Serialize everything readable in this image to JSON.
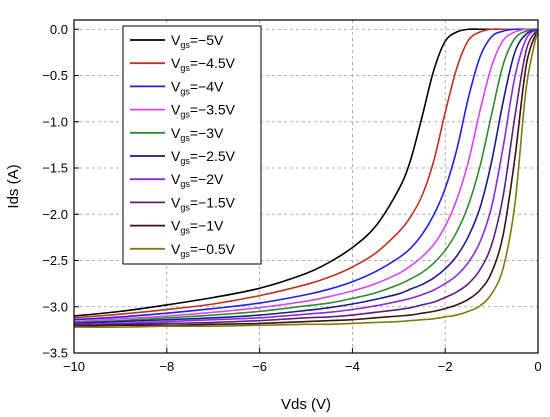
{
  "chart_data": {
    "type": "line",
    "xlabel": "Vds (V)",
    "ylabel": "Ids (A)",
    "xlim": [
      -10,
      0
    ],
    "ylim": [
      -3.5,
      0.1
    ],
    "xticks": [
      -10,
      -8,
      -6,
      -4,
      -2,
      0
    ],
    "xtick_labels": [
      "−10",
      "−8",
      "−6",
      "−4",
      "−2",
      "0"
    ],
    "yticks": [
      0.0,
      -0.5,
      -1.0,
      -1.5,
      -2.0,
      -2.5,
      -3.0,
      -3.5
    ],
    "ytick_labels": [
      "0.0",
      "−0.5",
      "−1.0",
      "−1.5",
      "−2.0",
      "−2.5",
      "−3.0",
      "−3.5"
    ],
    "grid": true,
    "legend_position": "top-left",
    "x": [
      -10,
      -9,
      -8,
      -7,
      -6,
      -5,
      -4.5,
      -4,
      -3.5,
      -3,
      -2.75,
      -2.5,
      -2.25,
      -2,
      -1.75,
      -1.5,
      -1.25,
      -1,
      -0.75,
      -0.5,
      -0.25,
      0
    ],
    "series": [
      {
        "name_main": "V",
        "name_sub": "gs",
        "name_rest": "=−5V",
        "color": "#000000",
        "values": [
          -3.1,
          -3.05,
          -2.98,
          -2.9,
          -2.8,
          -2.64,
          -2.52,
          -2.36,
          -2.13,
          -1.73,
          -1.42,
          -0.95,
          -0.45,
          -0.13,
          -0.03,
          0.0,
          0.0,
          0.0,
          0.0,
          0.0,
          0.0,
          0.0
        ]
      },
      {
        "name_main": "V",
        "name_sub": "gs",
        "name_rest": "=−4.5V",
        "color": "#c0311f",
        "values": [
          -3.12,
          -3.08,
          -3.03,
          -2.97,
          -2.88,
          -2.76,
          -2.68,
          -2.57,
          -2.42,
          -2.19,
          -2.03,
          -1.8,
          -1.43,
          -0.9,
          -0.42,
          -0.12,
          -0.03,
          0.0,
          0.0,
          0.0,
          0.0,
          0.0
        ]
      },
      {
        "name_main": "V",
        "name_sub": "gs",
        "name_rest": "=−4V",
        "color": "#1f1fe6",
        "values": [
          -3.14,
          -3.11,
          -3.07,
          -3.02,
          -2.96,
          -2.87,
          -2.81,
          -2.73,
          -2.62,
          -2.47,
          -2.37,
          -2.22,
          -2.01,
          -1.72,
          -1.3,
          -0.74,
          -0.3,
          -0.08,
          -0.02,
          0.0,
          0.0,
          0.0
        ]
      },
      {
        "name_main": "V",
        "name_sub": "gs",
        "name_rest": "=−3.5V",
        "color": "#d946ef",
        "values": [
          -3.16,
          -3.13,
          -3.1,
          -3.06,
          -3.01,
          -2.94,
          -2.89,
          -2.83,
          -2.75,
          -2.64,
          -2.56,
          -2.46,
          -2.33,
          -2.13,
          -1.84,
          -1.43,
          -0.88,
          -0.4,
          -0.12,
          -0.03,
          0.0,
          0.0
        ]
      },
      {
        "name_main": "V",
        "name_sub": "gs",
        "name_rest": "=−3V",
        "color": "#2e8b2e",
        "values": [
          -3.17,
          -3.15,
          -3.12,
          -3.09,
          -3.05,
          -2.99,
          -2.96,
          -2.91,
          -2.85,
          -2.76,
          -2.7,
          -2.63,
          -2.53,
          -2.39,
          -2.19,
          -1.9,
          -1.48,
          -0.92,
          -0.38,
          -0.1,
          -0.02,
          0.0
        ]
      },
      {
        "name_main": "V",
        "name_sub": "gs",
        "name_rest": "=−2.5V",
        "color": "#1a1a8c",
        "values": [
          -3.18,
          -3.16,
          -3.14,
          -3.12,
          -3.09,
          -3.04,
          -3.01,
          -2.97,
          -2.92,
          -2.86,
          -2.81,
          -2.76,
          -2.69,
          -2.59,
          -2.45,
          -2.24,
          -1.93,
          -1.43,
          -0.78,
          -0.25,
          -0.05,
          0.0
        ]
      },
      {
        "name_main": "V",
        "name_sub": "gs",
        "name_rest": "=−2V",
        "color": "#8a2be2",
        "values": [
          -3.19,
          -3.18,
          -3.16,
          -3.14,
          -3.12,
          -3.08,
          -3.06,
          -3.03,
          -2.99,
          -2.94,
          -2.91,
          -2.87,
          -2.82,
          -2.75,
          -2.66,
          -2.52,
          -2.3,
          -1.92,
          -1.27,
          -0.52,
          -0.1,
          0.0
        ]
      },
      {
        "name_main": "V",
        "name_sub": "gs",
        "name_rest": "=−1.5V",
        "color": "#5b1f80",
        "values": [
          -3.2,
          -3.19,
          -3.18,
          -3.17,
          -3.15,
          -3.12,
          -3.11,
          -3.09,
          -3.06,
          -3.03,
          -3.01,
          -2.98,
          -2.95,
          -2.9,
          -2.84,
          -2.75,
          -2.6,
          -2.33,
          -1.8,
          -0.95,
          -0.22,
          0.0
        ]
      },
      {
        "name_main": "V",
        "name_sub": "gs",
        "name_rest": "=−1V",
        "color": "#3b1212",
        "values": [
          -3.21,
          -3.2,
          -3.2,
          -3.19,
          -3.18,
          -3.16,
          -3.15,
          -3.14,
          -3.12,
          -3.1,
          -3.09,
          -3.07,
          -3.05,
          -3.02,
          -2.98,
          -2.92,
          -2.82,
          -2.63,
          -2.22,
          -1.4,
          -0.38,
          0.0
        ]
      },
      {
        "name_main": "V",
        "name_sub": "gs",
        "name_rest": "=−0.5V",
        "color": "#7d7a12",
        "values": [
          -3.22,
          -3.22,
          -3.21,
          -3.21,
          -3.2,
          -3.19,
          -3.19,
          -3.18,
          -3.17,
          -3.16,
          -3.15,
          -3.14,
          -3.13,
          -3.11,
          -3.09,
          -3.05,
          -2.99,
          -2.86,
          -2.58,
          -1.9,
          -0.62,
          0.0
        ]
      }
    ]
  }
}
